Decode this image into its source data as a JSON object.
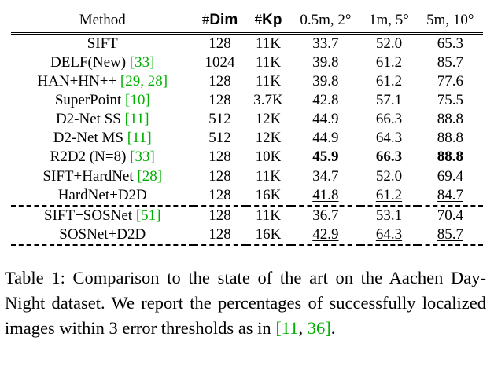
{
  "table": {
    "headers": {
      "method": "Method",
      "dim_hash": "#",
      "dim_bold": "Dim",
      "kp_hash": "#",
      "kp_bold": "Kp",
      "t1": "0.5m, 2°",
      "t2": "1m, 5°",
      "t3": "5m, 10°"
    },
    "rows": [
      {
        "method": "SIFT",
        "cite": "",
        "dim": "128",
        "kp": "11K",
        "v1": "33.7",
        "v2": "52.0",
        "v3": "65.3"
      },
      {
        "method": "DELF(New) ",
        "cite": "[33]",
        "dim": "1024",
        "kp": "11K",
        "v1": "39.8",
        "v2": "61.2",
        "v3": "85.7"
      },
      {
        "method": "HAN+HN++ ",
        "cite": "[29, 28]",
        "dim": "128",
        "kp": "11K",
        "v1": "39.8",
        "v2": "61.2",
        "v3": "77.6"
      },
      {
        "method": "SuperPoint ",
        "cite": "[10]",
        "dim": "128",
        "kp": "3.7K",
        "v1": "42.8",
        "v2": "57.1",
        "v3": "75.5"
      },
      {
        "method": "D2-Net SS ",
        "cite": "[11]",
        "dim": "512",
        "kp": "12K",
        "v1": "44.9",
        "v2": "66.3",
        "v3": "88.8"
      },
      {
        "method": "D2-Net MS ",
        "cite": "[11]",
        "dim": "512",
        "kp": "12K",
        "v1": "44.9",
        "v2": "64.3",
        "v3": "88.8"
      },
      {
        "method": "R2D2 (N=8) ",
        "cite": "[33]",
        "dim": "128",
        "kp": "10K",
        "v1": "45.9",
        "v2": "66.3",
        "v3": "88.8"
      },
      {
        "method": "SIFT+HardNet ",
        "cite": "[28]",
        "dim": "128",
        "kp": "11K",
        "v1": "34.7",
        "v2": "52.0",
        "v3": "69.4"
      },
      {
        "method": "HardNet+D2D",
        "cite": "",
        "dim": "128",
        "kp": "16K",
        "v1": "41.8",
        "v2": "61.2",
        "v3": "84.7"
      },
      {
        "method": "SIFT+SOSNet ",
        "cite": "[51]",
        "dim": "128",
        "kp": "11K",
        "v1": "36.7",
        "v2": "53.1",
        "v3": "70.4"
      },
      {
        "method": "SOSNet+D2D",
        "cite": "",
        "dim": "128",
        "kp": "16K",
        "v1": "42.9",
        "v2": "64.3",
        "v3": "85.7"
      }
    ]
  },
  "caption": {
    "label": "Table 1:",
    "text1": " Comparison to the state of the art on the Aachen Day-Night dataset.  We report the percentages of successfully localized images within 3 error thresholds as in ",
    "cite1": "[11",
    "sep": ", ",
    "cite2": "36]",
    "end": "."
  }
}
